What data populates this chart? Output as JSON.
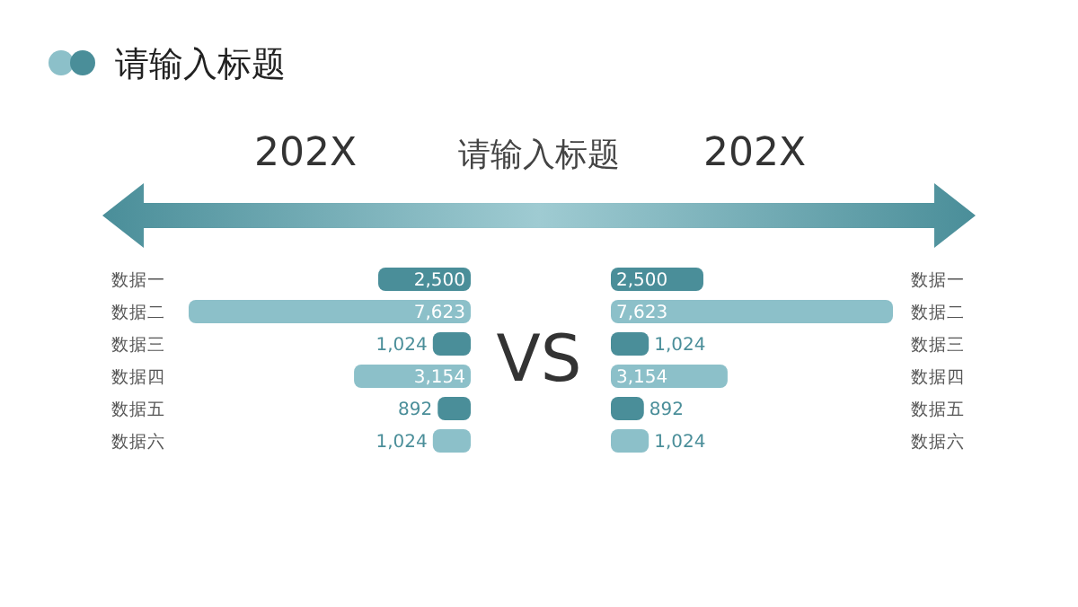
{
  "chart_data": [
    {
      "type": "bar",
      "orientation": "horizontal",
      "title": "202X",
      "annotations": [
        "请输入标题",
        "请输入标题",
        "VS"
      ],
      "categories": [
        "数据一",
        "数据二",
        "数据三",
        "数据四",
        "数据五",
        "数据六"
      ],
      "values": [
        2500,
        7623,
        1024,
        3154,
        892,
        1024
      ],
      "value_labels": [
        "2,500",
        "7,623",
        "1,024",
        "3,154",
        "892",
        "1,024"
      ],
      "colors": [
        "#4a8e99",
        "#8cc0c9",
        "#4a8e99",
        "#8cc0c9",
        "#4a8e99",
        "#8cc0c9"
      ]
    },
    {
      "type": "bar",
      "orientation": "horizontal",
      "title": "202X",
      "categories": [
        "数据一",
        "数据二",
        "数据三",
        "数据四",
        "数据五",
        "数据六"
      ],
      "values": [
        2500,
        7623,
        1024,
        3154,
        892,
        1024
      ],
      "value_labels": [
        "2,500",
        "7,623",
        "1,024",
        "3,154",
        "892",
        "1,024"
      ],
      "colors": [
        "#4a8e99",
        "#8cc0c9",
        "#4a8e99",
        "#8cc0c9",
        "#4a8e99",
        "#8cc0c9"
      ]
    }
  ]
}
